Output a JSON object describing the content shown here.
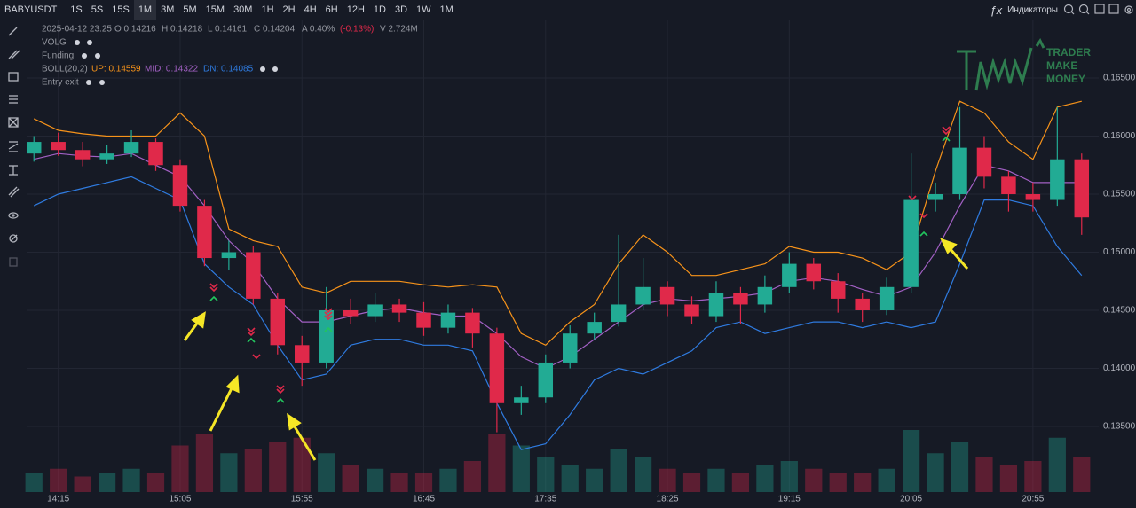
{
  "toolbar": {
    "symbol": "BABYUSDT",
    "intervals": [
      "1S",
      "5S",
      "15S",
      "1M",
      "3M",
      "5M",
      "15M",
      "30M",
      "1H",
      "2H",
      "4H",
      "6H",
      "12H",
      "1D",
      "3D",
      "1W",
      "1M"
    ],
    "active": 3,
    "indicators": "Индикаторы"
  },
  "legend": {
    "date": "2025-04-12 23:25",
    "open": "O 0.14216",
    "high": "H 0.14218",
    "low": "L 0.14161",
    "close": "C 0.14204",
    "amplitude": "A 0.40%",
    "change": "(-0.13%)",
    "volume": "V 2.724M",
    "indicators": [
      "VOLG",
      "Funding",
      "BOLL(20,2)",
      "Entry exit"
    ],
    "boll_up": "UP: 0.14559",
    "boll_mid": "MID: 0.14322",
    "boll_dn": "DN: 0.14085"
  },
  "watermark": [
    "TRADER",
    "MAKE",
    "MONEY"
  ],
  "chart_data": {
    "type": "candlestick",
    "x": [
      "14:05",
      "14:15",
      "14:25",
      "14:35",
      "14:45",
      "14:55",
      "15:05",
      "15:15",
      "15:25",
      "15:35",
      "15:45",
      "15:55",
      "16:05",
      "16:15",
      "16:25",
      "16:35",
      "16:45",
      "16:55",
      "17:05",
      "17:15",
      "17:25",
      "17:35",
      "17:45",
      "17:55",
      "18:05",
      "18:15",
      "18:25",
      "18:35",
      "18:45",
      "18:55",
      "19:05",
      "19:15",
      "19:25",
      "19:35",
      "19:45",
      "19:55",
      "20:05",
      "20:15",
      "20:25",
      "20:35",
      "20:45",
      "20:55",
      "21:05",
      "21:15"
    ],
    "open": [
      0.1585,
      0.1595,
      0.1588,
      0.158,
      0.1585,
      0.1595,
      0.1575,
      0.154,
      0.1495,
      0.15,
      0.146,
      0.142,
      0.1405,
      0.145,
      0.1445,
      0.1455,
      0.1448,
      0.1435,
      0.1448,
      0.143,
      0.137,
      0.1375,
      0.1405,
      0.143,
      0.144,
      0.1455,
      0.147,
      0.1455,
      0.1445,
      0.1465,
      0.1455,
      0.147,
      0.149,
      0.1475,
      0.146,
      0.145,
      0.147,
      0.1545,
      0.155,
      0.159,
      0.1565,
      0.155,
      0.1545,
      0.158
    ],
    "high": [
      0.16,
      0.1603,
      0.1595,
      0.1592,
      0.1605,
      0.1598,
      0.158,
      0.1545,
      0.151,
      0.1505,
      0.1465,
      0.1428,
      0.147,
      0.146,
      0.1465,
      0.146,
      0.1457,
      0.1455,
      0.1452,
      0.1435,
      0.1385,
      0.1412,
      0.1437,
      0.1448,
      0.1515,
      0.1495,
      0.1475,
      0.1462,
      0.1475,
      0.147,
      0.148,
      0.15,
      0.1495,
      0.1482,
      0.1465,
      0.1478,
      0.1585,
      0.156,
      0.1625,
      0.16,
      0.157,
      0.156,
      0.1625,
      0.1585
    ],
    "low": [
      0.1578,
      0.1583,
      0.1574,
      0.1576,
      0.1582,
      0.157,
      0.1535,
      0.1488,
      0.1485,
      0.1455,
      0.1412,
      0.1385,
      0.14,
      0.1438,
      0.144,
      0.144,
      0.1428,
      0.143,
      0.1418,
      0.1345,
      0.136,
      0.137,
      0.14,
      0.1425,
      0.1436,
      0.145,
      0.1445,
      0.1438,
      0.144,
      0.1438,
      0.1448,
      0.1465,
      0.1468,
      0.1448,
      0.144,
      0.1446,
      0.1465,
      0.1535,
      0.1545,
      0.1555,
      0.1535,
      0.1535,
      0.154,
      0.1515
    ],
    "close": [
      0.1595,
      0.1588,
      0.158,
      0.1585,
      0.1595,
      0.1575,
      0.154,
      0.1495,
      0.15,
      0.146,
      0.142,
      0.1405,
      0.145,
      0.1445,
      0.1455,
      0.1448,
      0.1435,
      0.1448,
      0.143,
      0.137,
      0.1375,
      0.1405,
      0.143,
      0.144,
      0.1455,
      0.147,
      0.1455,
      0.1445,
      0.1465,
      0.1455,
      0.147,
      0.149,
      0.1475,
      0.146,
      0.145,
      0.147,
      0.1545,
      0.155,
      0.159,
      0.1565,
      0.155,
      0.1545,
      0.158,
      0.153
    ],
    "volume": [
      0.5,
      0.6,
      0.4,
      0.5,
      0.6,
      0.5,
      1.2,
      1.5,
      1.0,
      1.1,
      1.3,
      1.4,
      1.0,
      0.7,
      0.6,
      0.5,
      0.5,
      0.6,
      0.8,
      1.5,
      1.2,
      0.9,
      0.7,
      0.6,
      1.1,
      0.9,
      0.6,
      0.5,
      0.6,
      0.5,
      0.7,
      0.8,
      0.6,
      0.5,
      0.5,
      0.6,
      1.6,
      1.0,
      1.3,
      0.9,
      0.7,
      0.8,
      1.4,
      0.9
    ],
    "up_color": "#22ab94",
    "down_color": "#e0294a",
    "series": [
      {
        "name": "UP",
        "color": "#f7931a",
        "values": [
          0.1615,
          0.1605,
          0.1602,
          0.16,
          0.16,
          0.16,
          0.162,
          0.16,
          0.152,
          0.151,
          0.1505,
          0.147,
          0.1465,
          0.1475,
          0.1475,
          0.1475,
          0.1472,
          0.147,
          0.1472,
          0.147,
          0.143,
          0.142,
          0.144,
          0.1455,
          0.149,
          0.1515,
          0.15,
          0.148,
          0.148,
          0.1485,
          0.149,
          0.1505,
          0.15,
          0.15,
          0.1495,
          0.1485,
          0.15,
          0.157,
          0.163,
          0.162,
          0.1595,
          0.158,
          0.1625,
          0.163
        ]
      },
      {
        "name": "MID",
        "color": "#a260c4",
        "values": [
          0.158,
          0.1585,
          0.1583,
          0.1582,
          0.1585,
          0.1575,
          0.1565,
          0.154,
          0.151,
          0.149,
          0.146,
          0.144,
          0.144,
          0.1445,
          0.145,
          0.1452,
          0.1448,
          0.1445,
          0.1445,
          0.143,
          0.141,
          0.14,
          0.141,
          0.1425,
          0.144,
          0.1455,
          0.146,
          0.1458,
          0.146,
          0.1462,
          0.1465,
          0.1475,
          0.1478,
          0.1475,
          0.1468,
          0.1462,
          0.147,
          0.15,
          0.154,
          0.1575,
          0.157,
          0.156,
          0.156,
          0.156
        ]
      },
      {
        "name": "DN",
        "color": "#2f7be0",
        "values": [
          0.154,
          0.155,
          0.1555,
          0.156,
          0.1565,
          0.1555,
          0.1545,
          0.149,
          0.147,
          0.1455,
          0.142,
          0.139,
          0.1395,
          0.142,
          0.1425,
          0.1425,
          0.142,
          0.142,
          0.1415,
          0.137,
          0.133,
          0.1335,
          0.136,
          0.139,
          0.14,
          0.1395,
          0.1405,
          0.1415,
          0.1435,
          0.144,
          0.143,
          0.1435,
          0.144,
          0.144,
          0.1435,
          0.144,
          0.1435,
          0.144,
          0.149,
          0.1545,
          0.1545,
          0.154,
          0.1505,
          0.148
        ]
      }
    ],
    "xlim": [
      "14:02",
      "21:22"
    ],
    "xticks": [
      "14:15",
      "15:05",
      "15:55",
      "16:45",
      "17:35",
      "18:25",
      "19:15",
      "20:05",
      "20:55"
    ],
    "ylim": [
      0.12935,
      0.17004
    ],
    "yticks": [
      {
        "value": 0.165,
        "label": "0.16500"
      },
      {
        "value": 0.16,
        "label": "0.16000"
      },
      {
        "value": 0.155,
        "label": "0.15500"
      },
      {
        "value": 0.15,
        "label": "0.15000"
      },
      {
        "value": 0.145,
        "label": "0.14500"
      },
      {
        "value": 0.14,
        "label": "0.14000"
      },
      {
        "value": 0.135,
        "label": "0.13500"
      }
    ],
    "grid": true
  }
}
